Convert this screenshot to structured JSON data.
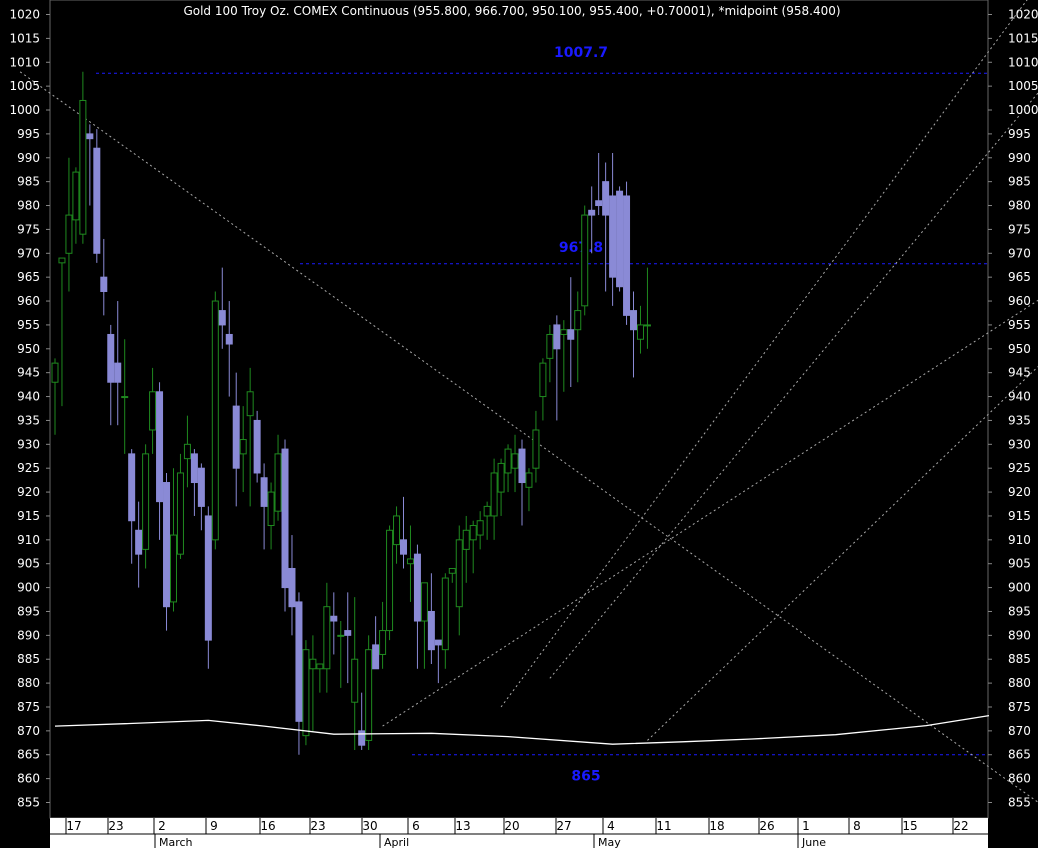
{
  "chart_data": {
    "type": "candlestick",
    "title": "Gold 100 Troy Oz. COMEX Continuous (955.800, 966.700, 950.100, 955.400, +0.70001), *midpoint (958.400)",
    "ylim": [
      851,
      1022
    ],
    "y_ticks": [
      1020,
      1015,
      1010,
      1005,
      1000,
      995,
      990,
      985,
      980,
      975,
      970,
      965,
      960,
      955,
      950,
      945,
      940,
      935,
      930,
      925,
      920,
      915,
      910,
      905,
      900,
      895,
      890,
      885,
      880,
      875,
      870,
      865,
      860,
      855
    ],
    "x_ticks": [
      "17",
      "23",
      "2",
      "9",
      "16",
      "23",
      "30",
      "6",
      "13",
      "20",
      "27",
      "4",
      "11",
      "18",
      "26",
      "1",
      "8",
      "15",
      "22"
    ],
    "months": [
      "March",
      "April",
      "May",
      "June"
    ],
    "colors": {
      "up": "#1f8a1f",
      "down": "#8a8ad6",
      "level": "#1a1aff",
      "ma": "#ffffff",
      "trend": "#aaaaaa"
    },
    "levels": [
      {
        "label": "1007.7",
        "value": 1007.7
      },
      {
        "label": "967.8",
        "value": 967.8
      },
      {
        "label": "865",
        "value": 865
      }
    ],
    "candles": [
      {
        "o": 943,
        "h": 948,
        "l": 932,
        "c": 947
      },
      {
        "o": 968,
        "h": 969,
        "l": 938,
        "c": 969
      },
      {
        "o": 970,
        "h": 990,
        "l": 962,
        "c": 978
      },
      {
        "o": 977,
        "h": 988,
        "l": 972,
        "c": 987
      },
      {
        "o": 974,
        "h": 1008,
        "l": 972,
        "c": 1002
      },
      {
        "o": 995,
        "h": 997,
        "l": 980,
        "c": 994
      },
      {
        "o": 992,
        "h": 996,
        "l": 968,
        "c": 970
      },
      {
        "o": 965,
        "h": 973,
        "l": 957,
        "c": 962
      },
      {
        "o": 953,
        "h": 955,
        "l": 934,
        "c": 943
      },
      {
        "o": 947,
        "h": 960,
        "l": 934,
        "c": 943
      },
      {
        "o": 940,
        "h": 952,
        "l": 928,
        "c": 940
      },
      {
        "o": 928,
        "h": 929,
        "l": 905,
        "c": 914
      },
      {
        "o": 912,
        "h": 918,
        "l": 900,
        "c": 907
      },
      {
        "o": 908,
        "h": 930,
        "l": 904,
        "c": 928
      },
      {
        "o": 933,
        "h": 946,
        "l": 928,
        "c": 941
      },
      {
        "o": 941,
        "h": 943,
        "l": 910,
        "c": 918
      },
      {
        "o": 922,
        "h": 924,
        "l": 891,
        "c": 896
      },
      {
        "o": 897,
        "h": 925,
        "l": 895,
        "c": 911
      },
      {
        "o": 907,
        "h": 928,
        "l": 906,
        "c": 924
      },
      {
        "o": 927,
        "h": 936,
        "l": 921,
        "c": 930
      },
      {
        "o": 928,
        "h": 929,
        "l": 915,
        "c": 922
      },
      {
        "o": 925,
        "h": 926,
        "l": 912,
        "c": 917
      },
      {
        "o": 915,
        "h": 917,
        "l": 883,
        "c": 889
      },
      {
        "o": 910,
        "h": 962,
        "l": 908,
        "c": 960
      },
      {
        "o": 958,
        "h": 967,
        "l": 950,
        "c": 955
      },
      {
        "o": 953,
        "h": 960,
        "l": 940,
        "c": 951
      },
      {
        "o": 938,
        "h": 945,
        "l": 917,
        "c": 925
      },
      {
        "o": 928,
        "h": 938,
        "l": 920,
        "c": 931
      },
      {
        "o": 936,
        "h": 946,
        "l": 917,
        "c": 941
      },
      {
        "o": 935,
        "h": 937,
        "l": 922,
        "c": 924
      },
      {
        "o": 923,
        "h": 926,
        "l": 908,
        "c": 917
      },
      {
        "o": 913,
        "h": 922,
        "l": 908,
        "c": 920
      },
      {
        "o": 916,
        "h": 932,
        "l": 914,
        "c": 928
      },
      {
        "o": 929,
        "h": 931,
        "l": 895,
        "c": 900
      },
      {
        "o": 904,
        "h": 911,
        "l": 890,
        "c": 896
      },
      {
        "o": 897,
        "h": 899,
        "l": 865,
        "c": 872
      },
      {
        "o": 869,
        "h": 889,
        "l": 867,
        "c": 887
      },
      {
        "o": 883,
        "h": 890,
        "l": 870,
        "c": 885
      },
      {
        "o": 883,
        "h": 884,
        "l": 878,
        "c": 884
      },
      {
        "o": 883,
        "h": 901,
        "l": 878,
        "c": 896
      },
      {
        "o": 894,
        "h": 899,
        "l": 886,
        "c": 893
      },
      {
        "o": 890,
        "h": 893,
        "l": 879,
        "c": 890
      },
      {
        "o": 891,
        "h": 899,
        "l": 880,
        "c": 890
      },
      {
        "o": 876,
        "h": 898,
        "l": 866,
        "c": 885
      },
      {
        "o": 870,
        "h": 878,
        "l": 866,
        "c": 867
      },
      {
        "o": 868,
        "h": 890,
        "l": 866,
        "c": 887
      },
      {
        "o": 888,
        "h": 894,
        "l": 883,
        "c": 883
      },
      {
        "o": 886,
        "h": 897,
        "l": 883,
        "c": 891
      },
      {
        "o": 891,
        "h": 913,
        "l": 889,
        "c": 912
      },
      {
        "o": 909,
        "h": 917,
        "l": 905,
        "c": 915
      },
      {
        "o": 910,
        "h": 919,
        "l": 904,
        "c": 907
      },
      {
        "o": 905,
        "h": 913,
        "l": 897,
        "c": 906
      },
      {
        "o": 907,
        "h": 909,
        "l": 883,
        "c": 893
      },
      {
        "o": 893,
        "h": 901,
        "l": 883,
        "c": 901
      },
      {
        "o": 895,
        "h": 903,
        "l": 884,
        "c": 887
      },
      {
        "o": 889,
        "h": 889,
        "l": 880,
        "c": 888
      },
      {
        "o": 887,
        "h": 903,
        "l": 883,
        "c": 902
      },
      {
        "o": 903,
        "h": 904,
        "l": 901,
        "c": 904
      },
      {
        "o": 896,
        "h": 913,
        "l": 890,
        "c": 910
      },
      {
        "o": 908,
        "h": 915,
        "l": 901,
        "c": 912
      },
      {
        "o": 910,
        "h": 914,
        "l": 903,
        "c": 913
      },
      {
        "o": 911,
        "h": 916,
        "l": 908,
        "c": 914
      },
      {
        "o": 915,
        "h": 918,
        "l": 910,
        "c": 917
      },
      {
        "o": 915,
        "h": 927,
        "l": 910,
        "c": 924
      },
      {
        "o": 920,
        "h": 927,
        "l": 915,
        "c": 926
      },
      {
        "o": 924,
        "h": 930,
        "l": 920,
        "c": 929
      },
      {
        "o": 925,
        "h": 932,
        "l": 920,
        "c": 928
      },
      {
        "o": 929,
        "h": 931,
        "l": 913,
        "c": 922
      },
      {
        "o": 921,
        "h": 925,
        "l": 916,
        "c": 924
      },
      {
        "o": 925,
        "h": 937,
        "l": 922,
        "c": 933
      },
      {
        "o": 940,
        "h": 948,
        "l": 935,
        "c": 947
      },
      {
        "o": 948,
        "h": 955,
        "l": 943,
        "c": 953
      },
      {
        "o": 955,
        "h": 957,
        "l": 935,
        "c": 950
      },
      {
        "o": 953,
        "h": 956,
        "l": 941,
        "c": 954
      },
      {
        "o": 954,
        "h": 965,
        "l": 942,
        "c": 952
      },
      {
        "o": 954,
        "h": 962,
        "l": 943,
        "c": 958
      },
      {
        "o": 959,
        "h": 980,
        "l": 957,
        "c": 978
      },
      {
        "o": 979,
        "h": 984,
        "l": 970,
        "c": 978
      },
      {
        "o": 981,
        "h": 991,
        "l": 978,
        "c": 980
      },
      {
        "o": 985,
        "h": 989,
        "l": 962,
        "c": 978
      },
      {
        "o": 982,
        "h": 991,
        "l": 959,
        "c": 965
      },
      {
        "o": 983,
        "h": 984,
        "l": 962,
        "c": 963
      },
      {
        "o": 982,
        "h": 985,
        "l": 955,
        "c": 957
      },
      {
        "o": 958,
        "h": 962,
        "l": 944,
        "c": 954
      },
      {
        "o": 952,
        "h": 959,
        "l": 949,
        "c": 955
      },
      {
        "o": 955,
        "h": 967,
        "l": 950,
        "c": 955
      }
    ],
    "ma_curve": [
      [
        0,
        871
      ],
      [
        10,
        871.5
      ],
      [
        22,
        872.2
      ],
      [
        30,
        871
      ],
      [
        40,
        869.3
      ],
      [
        54,
        869.5
      ],
      [
        65,
        868.8
      ],
      [
        80,
        867.2
      ],
      [
        90,
        867.7
      ],
      [
        100,
        868.3
      ],
      [
        112,
        869.2
      ],
      [
        125,
        871.1
      ],
      [
        134,
        873.2
      ]
    ],
    "trendlines": [
      {
        "x1": -5,
        "y1": 1008,
        "x2": 143,
        "y2": 853
      },
      {
        "x1": 47,
        "y1": 871,
        "x2": 143,
        "y2": 962
      },
      {
        "x1": 64,
        "y1": 875,
        "x2": 143,
        "y2": 1030
      },
      {
        "x1": 71,
        "y1": 881,
        "x2": 143,
        "y2": 1007
      },
      {
        "x1": 85,
        "y1": 868,
        "x2": 143,
        "y2": 949
      }
    ]
  }
}
